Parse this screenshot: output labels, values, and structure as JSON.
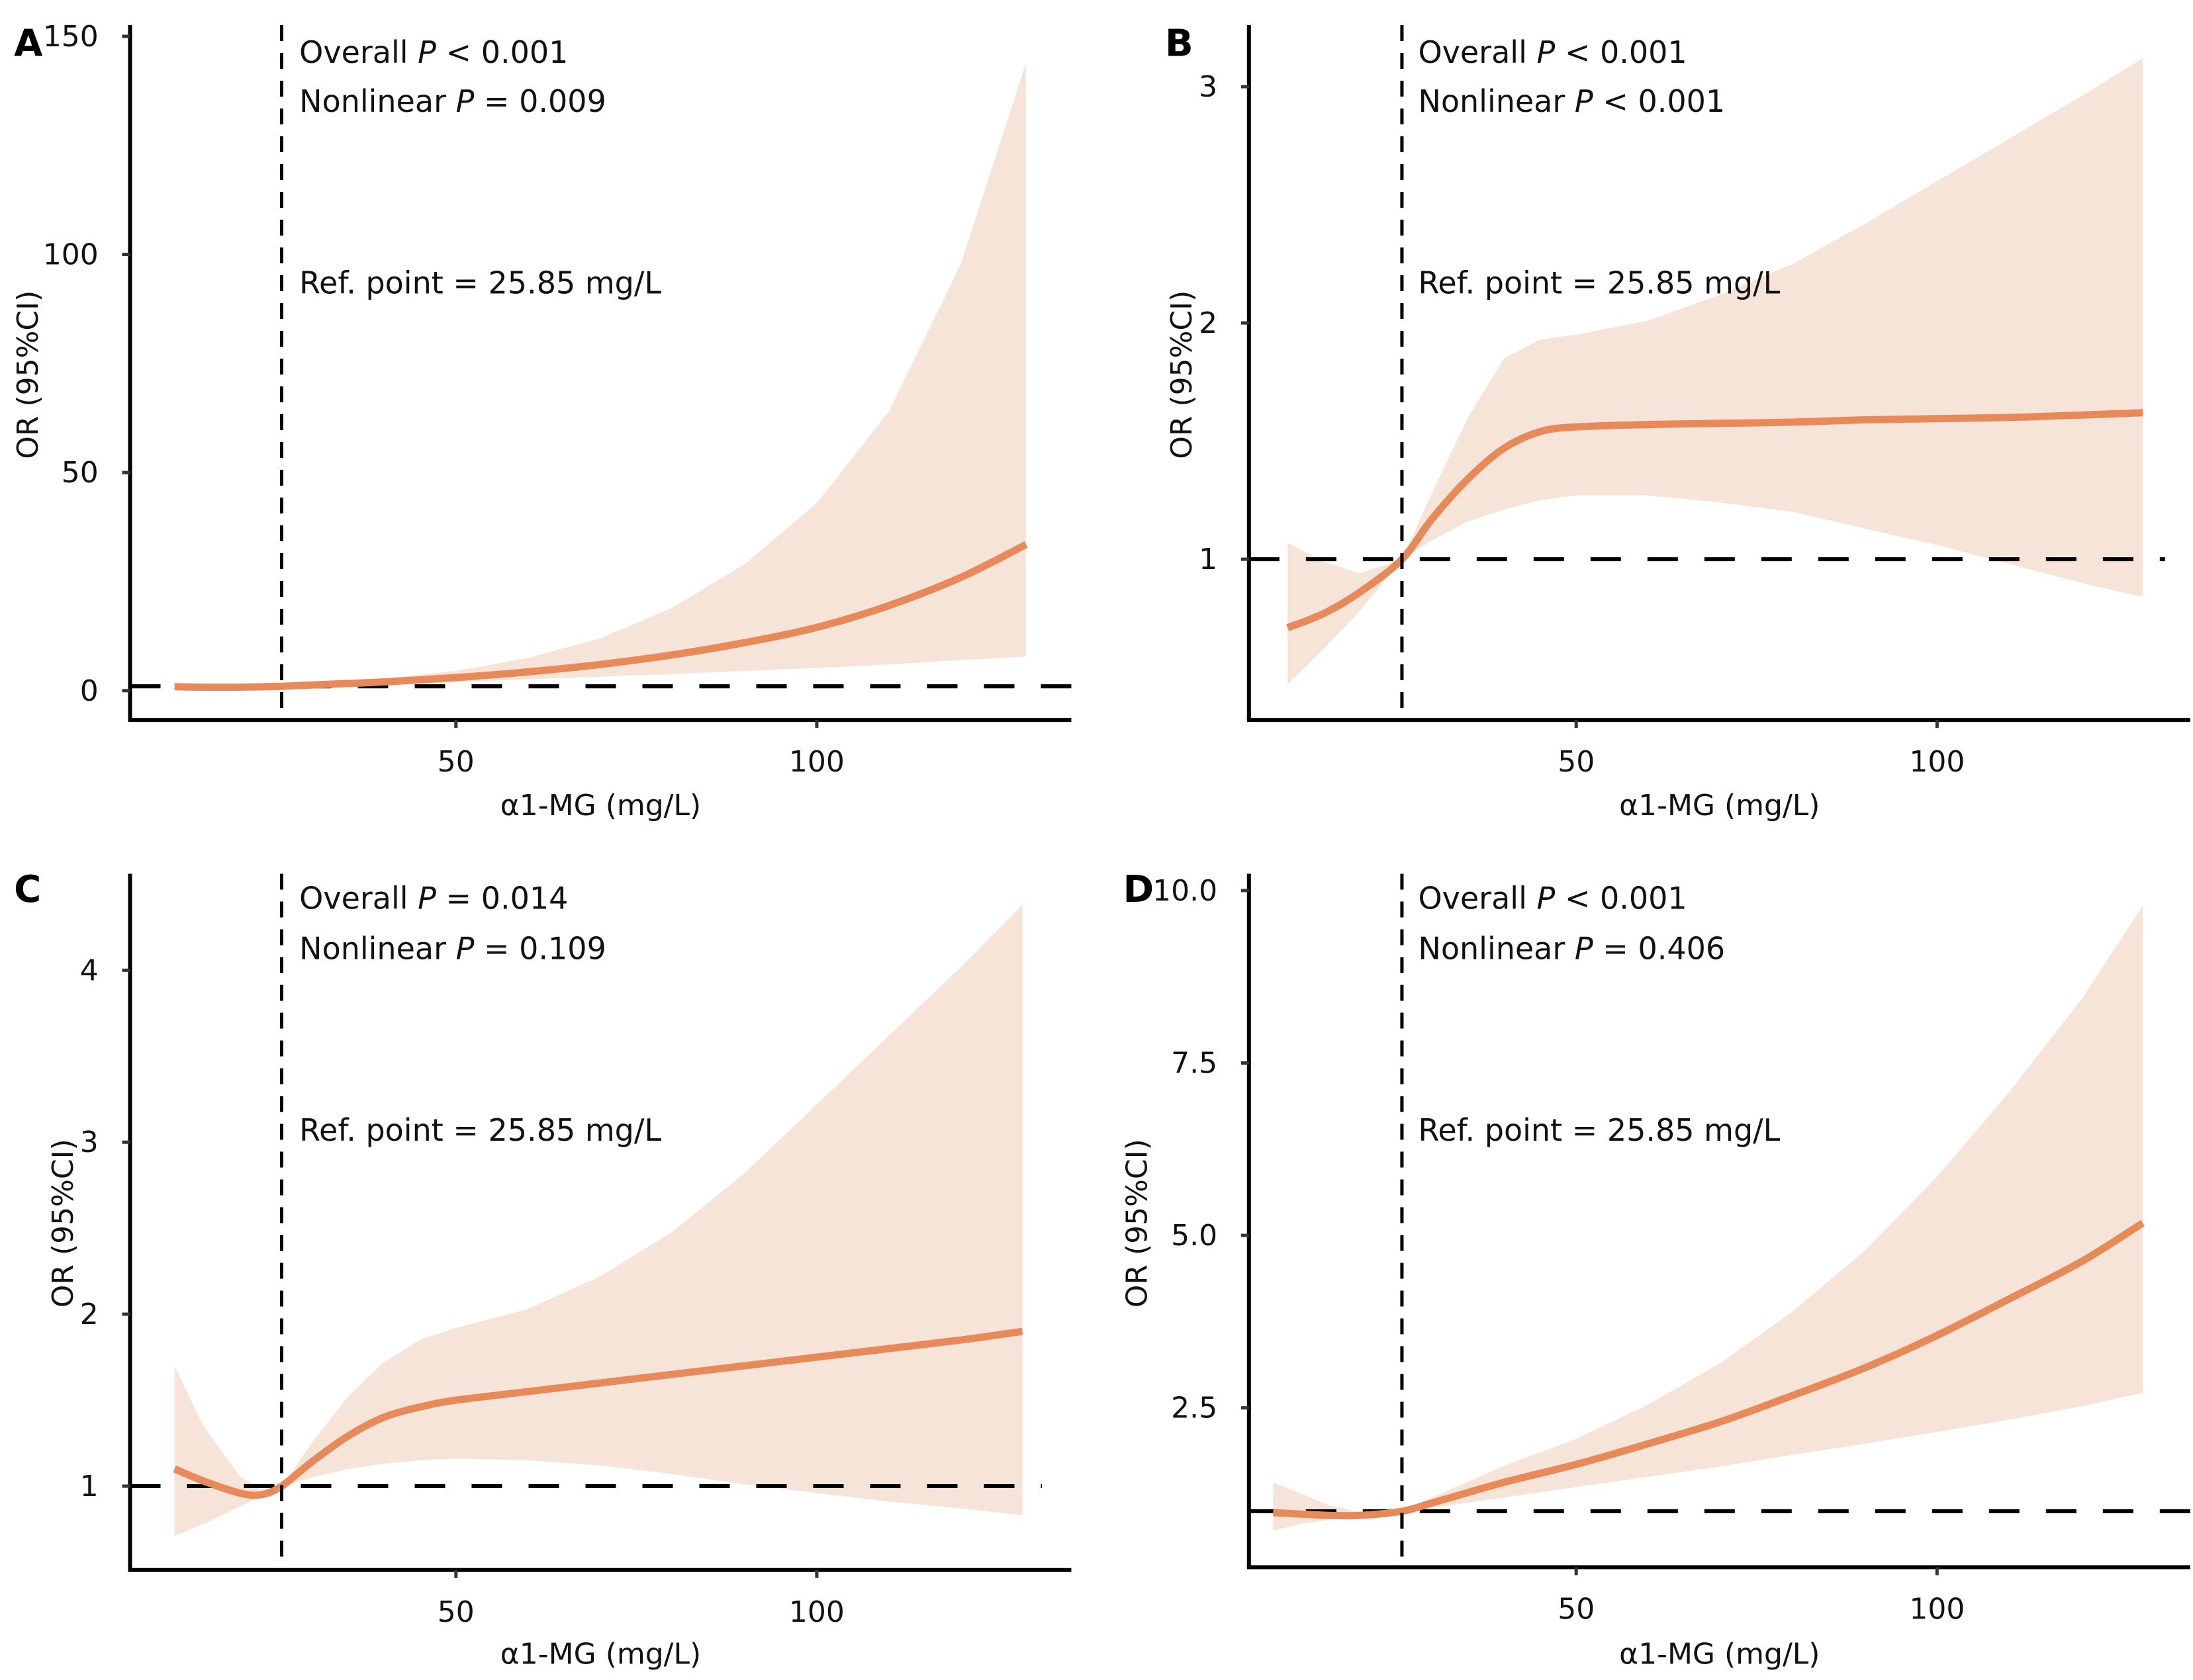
{
  "figure": {
    "panels": [
      "A",
      "B",
      "C",
      "D"
    ]
  },
  "colors": {
    "curve": "#E8895A",
    "ci_band": "#F7E4D9",
    "axis": "#000000",
    "reference_line": "#000000"
  },
  "chart_data": [
    {
      "panel": "A",
      "type": "line",
      "title": "",
      "xlabel": "α1-MG (mg/L)",
      "ylabel": "OR (95%CI)",
      "xlim": [
        0,
        130
      ],
      "ylim": [
        -7,
        152
      ],
      "xticks": [
        50,
        100
      ],
      "xtick_labels": [
        "50",
        "100"
      ],
      "yticks": [
        0,
        50,
        100,
        150
      ],
      "ytick_labels": [
        "0",
        "50",
        "100",
        "150"
      ],
      "reference_x": 25.85,
      "reference_y": 1,
      "annotations": {
        "overall_prefix": "Overall ",
        "overall_p": "P",
        "overall_suffix": " < 0.001",
        "nonlinear_prefix": "Nonlinear ",
        "nonlinear_p": "P",
        "nonlinear_suffix": " = 0.009",
        "ref_point": "Ref. point = 25.85 mg/L"
      },
      "series": [
        {
          "name": "OR",
          "x": [
            11,
            15,
            20,
            25.85,
            30,
            40,
            50,
            60,
            70,
            80,
            90,
            100,
            110,
            120,
            129
          ],
          "y": [
            0.9,
            0.8,
            0.8,
            1.0,
            1.3,
            2.0,
            3.0,
            4.3,
            6.0,
            8.2,
            11.0,
            14.5,
            19.5,
            26.0,
            33.5
          ],
          "lower": [
            0.5,
            0.5,
            0.6,
            1.0,
            1.1,
            1.5,
            2.0,
            2.6,
            3.2,
            3.8,
            4.5,
            5.2,
            6.0,
            7.0,
            7.8
          ],
          "upper": [
            1.5,
            1.2,
            1.0,
            1.0,
            1.6,
            2.8,
            4.5,
            7.5,
            12.0,
            19.0,
            29.0,
            43.0,
            64.0,
            98.0,
            144.0
          ]
        }
      ]
    },
    {
      "panel": "B",
      "type": "line",
      "title": "",
      "xlabel": "α1-MG (mg/L)",
      "ylabel": "OR (95%CI)",
      "xlim": [
        0,
        130
      ],
      "ylim": [
        0.32,
        3.3
      ],
      "xticks": [
        50,
        100
      ],
      "xtick_labels": [
        "50",
        "100"
      ],
      "yticks": [
        1,
        2,
        3
      ],
      "ytick_labels": [
        "1",
        "2",
        "3"
      ],
      "reference_x": 25.85,
      "reference_y": 1,
      "annotations": {
        "overall_prefix": "Overall ",
        "overall_p": "P",
        "overall_suffix": " < 0.001",
        "nonlinear_prefix": "Nonlinear ",
        "nonlinear_p": "P",
        "nonlinear_suffix": " < 0.001",
        "ref_point": "Ref. point = 25.85 mg/L"
      },
      "series": [
        {
          "name": "OR",
          "x": [
            10,
            15,
            20,
            25.85,
            30,
            35,
            40,
            45,
            50,
            60,
            70,
            80,
            90,
            100,
            110,
            120,
            128.5
          ],
          "y": [
            0.71,
            0.77,
            0.86,
            1.0,
            1.17,
            1.34,
            1.47,
            1.54,
            1.56,
            1.57,
            1.575,
            1.58,
            1.59,
            1.595,
            1.6,
            1.61,
            1.62
          ],
          "lower": [
            0.47,
            0.62,
            0.78,
            1.0,
            1.08,
            1.16,
            1.21,
            1.25,
            1.27,
            1.27,
            1.24,
            1.2,
            1.13,
            1.06,
            0.98,
            0.9,
            0.84
          ],
          "upper": [
            1.07,
            0.99,
            0.94,
            1.0,
            1.28,
            1.6,
            1.85,
            1.93,
            1.95,
            2.01,
            2.12,
            2.25,
            2.42,
            2.6,
            2.78,
            2.96,
            3.12
          ]
        }
      ]
    },
    {
      "panel": "C",
      "type": "line",
      "title": "",
      "xlabel": "α1-MG (mg/L)",
      "ylabel": "OR (95%CI)",
      "xlim": [
        0,
        130
      ],
      "ylim": [
        0.53,
        4.55
      ],
      "xticks": [
        50,
        100
      ],
      "xtick_labels": [
        "50",
        "100"
      ],
      "yticks": [
        1,
        2,
        3,
        4
      ],
      "ytick_labels": [
        "1",
        "2",
        "3",
        "4"
      ],
      "reference_x": 25.85,
      "reference_y": 1,
      "annotations": {
        "overall_prefix": "Overall ",
        "overall_p": "P",
        "overall_suffix": " = 0.014",
        "nonlinear_prefix": "Nonlinear ",
        "nonlinear_p": "P",
        "nonlinear_suffix": " = 0.109",
        "ref_point": "Ref. point = 25.85 mg/L"
      },
      "series": [
        {
          "name": "OR",
          "x": [
            11,
            15,
            20,
            23,
            25.85,
            30,
            35,
            40,
            45,
            50,
            60,
            70,
            80,
            90,
            100,
            110,
            120,
            128.5
          ],
          "y": [
            1.1,
            1.03,
            0.96,
            0.95,
            1.0,
            1.14,
            1.29,
            1.4,
            1.46,
            1.5,
            1.55,
            1.6,
            1.65,
            1.7,
            1.75,
            1.8,
            1.85,
            1.9
          ],
          "lower": [
            0.71,
            0.78,
            0.88,
            0.94,
            1.0,
            1.05,
            1.1,
            1.13,
            1.15,
            1.16,
            1.15,
            1.12,
            1.07,
            1.01,
            0.96,
            0.91,
            0.87,
            0.83
          ],
          "upper": [
            1.7,
            1.35,
            1.06,
            0.98,
            1.0,
            1.25,
            1.52,
            1.72,
            1.85,
            1.92,
            2.03,
            2.22,
            2.48,
            2.82,
            3.22,
            3.62,
            4.02,
            4.38
          ]
        }
      ]
    },
    {
      "panel": "D",
      "type": "line",
      "title": "",
      "xlabel": "α1-MG (mg/L)",
      "ylabel": "OR (95%CI)",
      "xlim": [
        0,
        130
      ],
      "ylim": [
        -0.3,
        10.3
      ],
      "xticks": [
        50,
        100
      ],
      "xtick_labels": [
        "50",
        "100"
      ],
      "yticks": [
        2.5,
        5.0,
        7.5,
        10.0
      ],
      "ytick_labels": [
        "2.5",
        "5.0",
        "7.5",
        "10.0"
      ],
      "reference_x": 25.85,
      "reference_y": 1,
      "annotations": {
        "overall_prefix": "Overall ",
        "overall_p": "P",
        "overall_suffix": " < 0.001",
        "nonlinear_prefix": "Nonlinear ",
        "nonlinear_p": "P",
        "nonlinear_suffix": " = 0.406",
        "ref_point": "Ref. point = 25.85 mg/L"
      },
      "series": [
        {
          "name": "OR",
          "x": [
            8,
            12,
            16,
            20,
            25.85,
            30,
            40,
            50,
            60,
            70,
            80,
            90,
            100,
            110,
            120,
            128.5
          ],
          "y": [
            0.98,
            0.96,
            0.94,
            0.94,
            1.0,
            1.12,
            1.42,
            1.68,
            1.98,
            2.3,
            2.68,
            3.08,
            3.55,
            4.08,
            4.62,
            5.18
          ],
          "lower": [
            0.72,
            0.82,
            0.88,
            0.93,
            1.0,
            1.05,
            1.2,
            1.35,
            1.5,
            1.65,
            1.82,
            1.98,
            2.15,
            2.33,
            2.52,
            2.72
          ],
          "upper": [
            1.42,
            1.25,
            1.08,
            0.99,
            1.0,
            1.2,
            1.66,
            2.05,
            2.55,
            3.15,
            3.9,
            4.78,
            5.85,
            7.08,
            8.42,
            9.78
          ]
        }
      ]
    }
  ]
}
